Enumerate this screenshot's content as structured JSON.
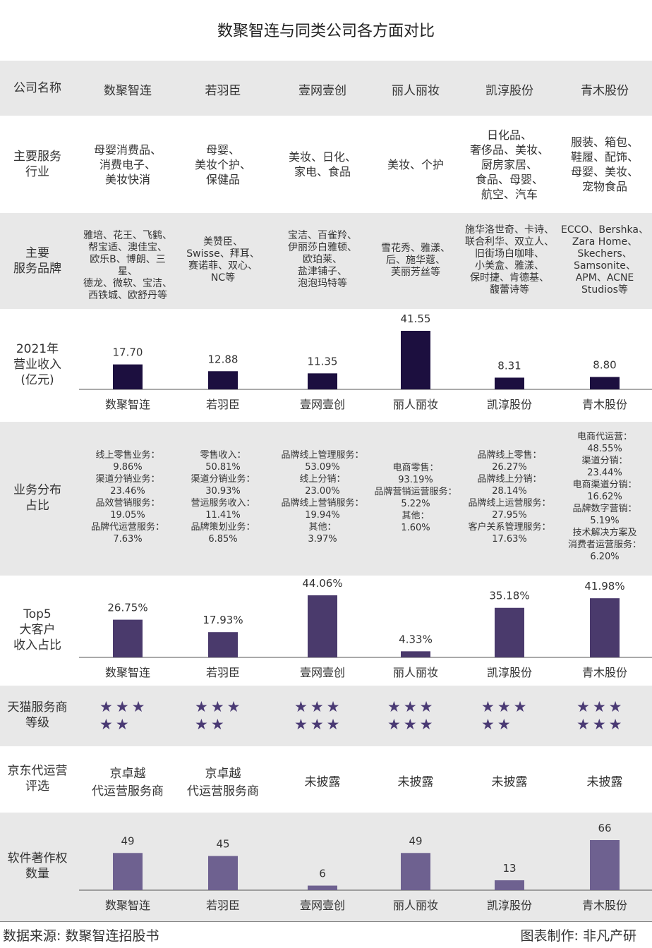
{
  "title": "数聚智连与同类公司各方面对比",
  "header": {
    "label": "公司名称",
    "companies": [
      "数聚智连",
      "若羽臣",
      "壹网壹创",
      "丽人丽妆",
      "凯淳股份",
      "青木股份"
    ]
  },
  "rows": {
    "industry": {
      "label": [
        "主要服务",
        "行业"
      ],
      "cells": [
        [
          "母婴消费品、",
          "消费电子、",
          "美妆快消"
        ],
        [
          "母婴、",
          "美妆个护、",
          "保健品"
        ],
        [
          "美妆、日化、",
          "家电、食品"
        ],
        [
          "美妆、个护"
        ],
        [
          "日化品、",
          "奢侈品、美妆、",
          "厨房家居、",
          "食品、母婴、",
          "航空、汽车"
        ],
        [
          "服装、箱包、",
          "鞋履、配饰、",
          "母婴、美妆、",
          "宠物食品"
        ]
      ]
    },
    "brands": {
      "label": [
        "主要",
        "服务品牌"
      ],
      "cells": [
        [
          "雅培、花王、飞鹤、",
          "帮宝适、澳佳宝、",
          "欧乐B、博朗、三星、",
          "德龙、微软、宝洁、",
          "西铁城、欧舒丹等"
        ],
        [
          "美赞臣、",
          "Swisse、拜耳、",
          "赛诺菲、双心、",
          "NC等"
        ],
        [
          "宝洁、百雀羚、",
          "伊丽莎白雅顿、",
          "欧珀莱、",
          "盐津铺子、",
          "泡泡玛特等"
        ],
        [
          "雪花秀、雅漾、",
          "后、施华蔻、",
          "芙丽芳丝等"
        ],
        [
          "施华洛世奇、卡诗、",
          "联合利华、双立人、",
          "旧街场白咖啡、",
          "小美盒、雅漾、",
          "保时捷、肯德基、",
          "馥蕾诗等"
        ],
        [
          "ECCO、Bershka、",
          "Zara Home、",
          "Skechers、",
          "Samsonite、",
          "APM、ACNE",
          "Studios等"
        ]
      ]
    },
    "business": {
      "label": [
        "业务分布",
        "占比"
      ],
      "cells": [
        [
          "线上零售业务：",
          "9.86%",
          "渠道分销业务：",
          "23.46%",
          "品效营销服务：",
          "19.05%",
          "品牌代运营服务：",
          "7.63%"
        ],
        [
          "零售收入：",
          "50.81%",
          "渠道分销业务：",
          "30.93%",
          "营运服务收入：",
          "11.41%",
          "品牌策划业务：",
          "6.85%"
        ],
        [
          "品牌线上管理服务：",
          "53.09%",
          "线上分销：",
          "23.00%",
          "品牌线上营销服务：",
          "19.94%",
          "其他：",
          "3.97%"
        ],
        [
          "电商零售：",
          "93.19%",
          "品牌营销运营服务：",
          "5.22%",
          "其他：",
          "1.60%"
        ],
        [
          "品牌线上零售：",
          "26.27%",
          "品牌线上分销：",
          "28.14%",
          "品牌线上运营服务：",
          "27.95%",
          "客户关系管理服务：",
          "17.63%"
        ],
        [
          "电商代运营：",
          "48.55%",
          "渠道分销：",
          "23.44%",
          "电商渠道分销：",
          "16.62%",
          "品牌数字营销：",
          "5.19%",
          "技术解决方案及",
          "消费者运营服务：",
          "6.20%"
        ]
      ]
    },
    "tmall": {
      "label": [
        "天猫服务商",
        "等级"
      ],
      "stars": [
        5,
        5,
        6,
        6,
        5,
        6
      ],
      "star_char": "★"
    },
    "jd": {
      "label": [
        "京东代运营",
        "评选"
      ],
      "cells": [
        [
          "京卓越",
          "代运营服务商"
        ],
        [
          "京卓越",
          "代运营服务商"
        ],
        [
          "未披露"
        ],
        [
          "未披露"
        ],
        [
          "未披露"
        ],
        [
          "未披露"
        ]
      ]
    }
  },
  "chart_data": [
    {
      "type": "bar",
      "label": [
        "2021年",
        "营业收入",
        "(亿元)"
      ],
      "categories": [
        "数聚智连",
        "若羽臣",
        "壹网壹创",
        "丽人丽妆",
        "凯淳股份",
        "青木股份"
      ],
      "values": [
        17.7,
        12.88,
        11.35,
        41.55,
        8.31,
        8.8
      ],
      "value_labels": [
        "17.70",
        "12.88",
        "11.35",
        "41.55",
        "8.31",
        "8.80"
      ],
      "color": "#1c0f3f"
    },
    {
      "type": "bar",
      "label": [
        "Top5",
        "大客户",
        "收入占比"
      ],
      "categories": [
        "数聚智连",
        "若羽臣",
        "壹网壹创",
        "丽人丽妆",
        "凯淳股份",
        "青木股份"
      ],
      "values": [
        26.75,
        17.93,
        44.06,
        4.33,
        35.18,
        41.98
      ],
      "value_labels": [
        "26.75%",
        "17.93%",
        "44.06%",
        "4.33%",
        "35.18%",
        "41.98%"
      ],
      "color": "#4a3a6c"
    },
    {
      "type": "bar",
      "label": [
        "软件著作权",
        "数量"
      ],
      "categories": [
        "数聚智连",
        "若羽臣",
        "壹网壹创",
        "丽人丽妆",
        "凯淳股份",
        "青木股份"
      ],
      "values": [
        49,
        45,
        6,
        49,
        13,
        66
      ],
      "value_labels": [
        "49",
        "45",
        "6",
        "49",
        "13",
        "66"
      ],
      "color": "#6e6190"
    }
  ],
  "footer": {
    "source": "数据来源: 数聚智连招股书",
    "credit": "图表制作: 非凡产研"
  }
}
